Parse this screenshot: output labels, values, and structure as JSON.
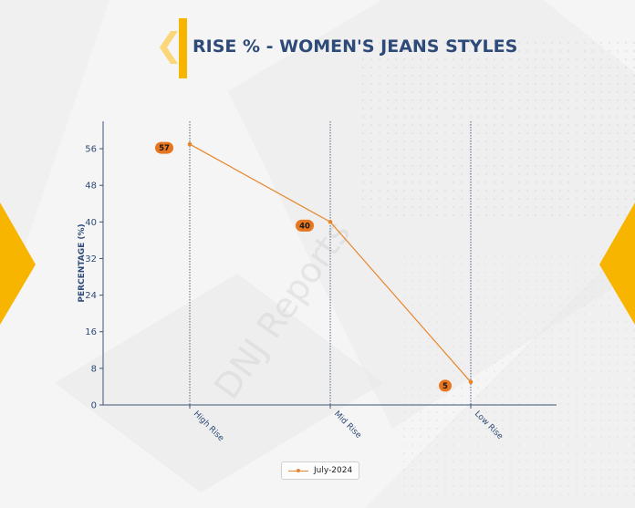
{
  "page": {
    "title": "RISE % - WOMEN'S JEANS STYLES",
    "watermark": "DNJ Reports",
    "colors": {
      "accent": "#f7b500",
      "title": "#2e4a78",
      "series": "#e8852a",
      "label_bg": "#e8761f"
    }
  },
  "chart_data": {
    "type": "line",
    "title": "RISE % - WOMEN'S JEANS STYLES",
    "xlabel": "",
    "ylabel": "PERCENTAGE (%)",
    "categories": [
      "High Rise",
      "Mid Rise",
      "Low Rise"
    ],
    "series": [
      {
        "name": "July-2024",
        "values": [
          57,
          40,
          5
        ]
      }
    ],
    "ylim": [
      0,
      62
    ],
    "yticks": [
      0,
      8,
      16,
      24,
      32,
      40,
      48,
      56
    ],
    "grid": "vertical dotted lines at categories",
    "legend": "bottom-center"
  }
}
